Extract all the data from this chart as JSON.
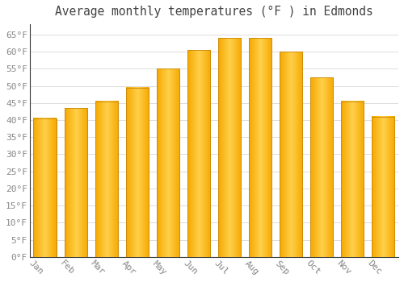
{
  "title": "Average monthly temperatures (°F ) in Edmonds",
  "months": [
    "Jan",
    "Feb",
    "Mar",
    "Apr",
    "May",
    "Jun",
    "Jul",
    "Aug",
    "Sep",
    "Oct",
    "Nov",
    "Dec"
  ],
  "values": [
    40.5,
    43.5,
    45.5,
    49.5,
    55.0,
    60.5,
    64.0,
    64.0,
    60.0,
    52.5,
    45.5,
    41.0
  ],
  "bar_color_center": "#FFD04A",
  "bar_color_edge": "#F5A800",
  "bar_border_color": "#C8870A",
  "background_color": "#FFFFFF",
  "plot_bg_color": "#FFFFFF",
  "grid_color": "#DDDDDD",
  "ylim": [
    0,
    68
  ],
  "yticks": [
    0,
    5,
    10,
    15,
    20,
    25,
    30,
    35,
    40,
    45,
    50,
    55,
    60,
    65
  ],
  "title_fontsize": 10.5,
  "tick_label_color": "#888888",
  "tick_label_fontsize": 8,
  "title_color": "#444444",
  "bar_width": 0.75,
  "figsize": [
    5.0,
    3.5
  ],
  "dpi": 100
}
